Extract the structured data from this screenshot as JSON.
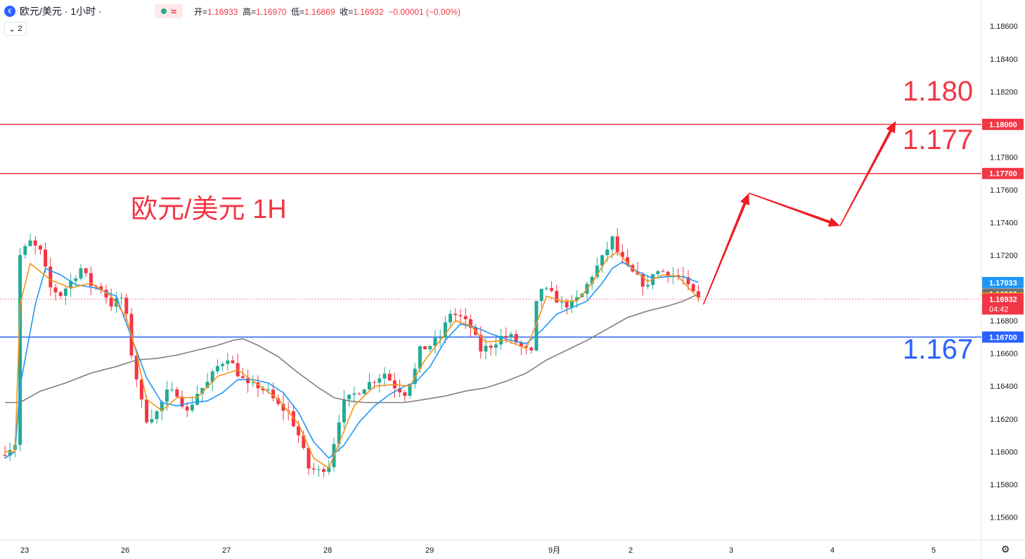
{
  "header": {
    "symbol": "欧元/美元 · 1小时 ·",
    "open_label": "开=",
    "open": "1.16933",
    "high_label": "高=",
    "high": "1.16970",
    "low_label": "低=",
    "low": "1.16869",
    "close_label": "收=",
    "close": "1.16932",
    "change": "−0.00001 (−0.00%)",
    "indicator_count": "2",
    "approx_symbol": "≈"
  },
  "annotations": {
    "title": "欧元/美元 1H",
    "level_180": "1.180",
    "level_177": "1.177",
    "level_167": "1.167"
  },
  "colors": {
    "up": "#22ab94",
    "down": "#f23645",
    "ma_fast": "#f7931a",
    "ma_mid": "#2196f3",
    "ma_slow": "#808080",
    "resistance": "#f23645",
    "support": "#2962ff"
  },
  "chart_data": {
    "type": "candlestick",
    "y_ticks": [
      "1.18600",
      "1.18400",
      "1.18200",
      "1.17800",
      "1.17600",
      "1.17400",
      "1.17200",
      "1.16800",
      "1.16600",
      "1.16400",
      "1.16200",
      "1.16000",
      "1.15800",
      "1.15600"
    ],
    "ylim": [
      1.1546,
      1.1876
    ],
    "x_ticks": [
      "23",
      "26",
      "27",
      "28",
      "29",
      "9月",
      "2",
      "3",
      "4",
      "5"
    ],
    "price_tags": [
      {
        "label": "1.18000",
        "value": 1.18,
        "color": "#f23645"
      },
      {
        "label": "1.17700",
        "value": 1.177,
        "color": "#f23645"
      },
      {
        "label": "1.17033",
        "value": 1.17033,
        "color": "#2196f3"
      },
      {
        "label": "1.16963",
        "value": 1.16963,
        "color": "#707070"
      },
      {
        "label": "1.16938",
        "value": 1.16938,
        "color": "#f7931a"
      },
      {
        "label": "1.16932",
        "value": 1.16932,
        "color": "#f23645",
        "sub": "04:42"
      },
      {
        "label": "1.16700",
        "value": 1.167,
        "color": "#2962ff"
      }
    ],
    "horizontal_levels": [
      {
        "value": 1.18,
        "color": "#f23645"
      },
      {
        "value": 1.177,
        "color": "#f23645"
      },
      {
        "value": 1.167,
        "color": "#2962ff"
      }
    ],
    "current_price": 1.16932,
    "close_path": [
      [
        0,
        1.16
      ],
      [
        2,
        1.1605
      ],
      [
        3,
        1.172
      ],
      [
        5,
        1.1728
      ],
      [
        7,
        1.1722
      ],
      [
        9,
        1.17
      ],
      [
        11,
        1.1696
      ],
      [
        13,
        1.1704
      ],
      [
        15,
        1.1712
      ],
      [
        17,
        1.1702
      ],
      [
        19,
        1.17
      ],
      [
        21,
        1.169
      ],
      [
        23,
        1.1694
      ],
      [
        24,
        1.1682
      ],
      [
        25,
        1.166
      ],
      [
        27,
        1.163
      ],
      [
        28,
        1.162
      ],
      [
        30,
        1.1624
      ],
      [
        32,
        1.1636
      ],
      [
        34,
        1.1636
      ],
      [
        36,
        1.1624
      ],
      [
        38,
        1.1636
      ],
      [
        40,
        1.1642
      ],
      [
        42,
        1.1652
      ],
      [
        44,
        1.1658
      ],
      [
        46,
        1.1648
      ],
      [
        48,
        1.164
      ],
      [
        50,
        1.164
      ],
      [
        52,
        1.1636
      ],
      [
        54,
        1.1628
      ],
      [
        56,
        1.1624
      ],
      [
        58,
        1.161
      ],
      [
        60,
        1.159
      ],
      [
        62,
        1.1588
      ],
      [
        64,
        1.1592
      ],
      [
        66,
        1.162
      ],
      [
        67,
        1.163
      ],
      [
        69,
        1.1635
      ],
      [
        71,
        1.164
      ],
      [
        73,
        1.1644
      ],
      [
        75,
        1.1648
      ],
      [
        77,
        1.164
      ],
      [
        79,
        1.1636
      ],
      [
        81,
        1.165
      ],
      [
        82,
        1.1662
      ],
      [
        84,
        1.1665
      ],
      [
        86,
        1.167
      ],
      [
        88,
        1.1685
      ],
      [
        90,
        1.1682
      ],
      [
        92,
        1.1676
      ],
      [
        94,
        1.1662
      ],
      [
        96,
        1.1665
      ],
      [
        98,
        1.167
      ],
      [
        100,
        1.167
      ],
      [
        102,
        1.1664
      ],
      [
        104,
        1.166
      ],
      [
        105,
        1.169
      ],
      [
        106,
        1.17
      ],
      [
        108,
        1.1696
      ],
      [
        110,
        1.169
      ],
      [
        112,
        1.169
      ],
      [
        114,
        1.1696
      ],
      [
        116,
        1.1708
      ],
      [
        118,
        1.1718
      ],
      [
        120,
        1.173
      ],
      [
        121,
        1.1722
      ],
      [
        123,
        1.1712
      ],
      [
        125,
        1.1706
      ],
      [
        127,
        1.17
      ],
      [
        128,
        1.171
      ],
      [
        130,
        1.171
      ],
      [
        132,
        1.1708
      ],
      [
        134,
        1.1706
      ],
      [
        135,
        1.17
      ],
      [
        137,
        1.1693
      ]
    ],
    "ma_fast_path": [
      [
        0,
        1.16
      ],
      [
        2,
        1.16
      ],
      [
        3,
        1.169
      ],
      [
        5,
        1.1715
      ],
      [
        9,
        1.1705
      ],
      [
        13,
        1.17
      ],
      [
        17,
        1.1703
      ],
      [
        21,
        1.1695
      ],
      [
        24,
        1.1682
      ],
      [
        26,
        1.166
      ],
      [
        28,
        1.1632
      ],
      [
        31,
        1.1625
      ],
      [
        34,
        1.1633
      ],
      [
        38,
        1.1633
      ],
      [
        42,
        1.1646
      ],
      [
        46,
        1.165
      ],
      [
        50,
        1.1641
      ],
      [
        54,
        1.1632
      ],
      [
        58,
        1.1617
      ],
      [
        61,
        1.1596
      ],
      [
        64,
        1.159
      ],
      [
        66,
        1.1605
      ],
      [
        69,
        1.1628
      ],
      [
        73,
        1.164
      ],
      [
        77,
        1.1641
      ],
      [
        80,
        1.164
      ],
      [
        83,
        1.1656
      ],
      [
        86,
        1.1668
      ],
      [
        89,
        1.168
      ],
      [
        92,
        1.1677
      ],
      [
        95,
        1.1667
      ],
      [
        99,
        1.1668
      ],
      [
        103,
        1.1663
      ],
      [
        105,
        1.1678
      ],
      [
        107,
        1.1695
      ],
      [
        110,
        1.1692
      ],
      [
        113,
        1.1692
      ],
      [
        116,
        1.1703
      ],
      [
        119,
        1.1718
      ],
      [
        121,
        1.1722
      ],
      [
        124,
        1.1712
      ],
      [
        127,
        1.1704
      ],
      [
        130,
        1.1708
      ],
      [
        133,
        1.1707
      ],
      [
        137,
        1.16938
      ]
    ],
    "ma_mid_path": [
      [
        0,
        1.1596
      ],
      [
        2,
        1.16
      ],
      [
        3,
        1.164
      ],
      [
        6,
        1.169
      ],
      [
        8,
        1.1712
      ],
      [
        11,
        1.1708
      ],
      [
        14,
        1.1702
      ],
      [
        18,
        1.17
      ],
      [
        22,
        1.1695
      ],
      [
        25,
        1.167
      ],
      [
        28,
        1.1645
      ],
      [
        31,
        1.163
      ],
      [
        34,
        1.1628
      ],
      [
        37,
        1.163
      ],
      [
        40,
        1.1631
      ],
      [
        43,
        1.1636
      ],
      [
        46,
        1.1644
      ],
      [
        49,
        1.1644
      ],
      [
        52,
        1.1642
      ],
      [
        55,
        1.1636
      ],
      [
        58,
        1.1624
      ],
      [
        61,
        1.1606
      ],
      [
        64,
        1.1596
      ],
      [
        67,
        1.1604
      ],
      [
        70,
        1.1618
      ],
      [
        73,
        1.1628
      ],
      [
        76,
        1.1635
      ],
      [
        79,
        1.164
      ],
      [
        81,
        1.1642
      ],
      [
        84,
        1.1652
      ],
      [
        87,
        1.1668
      ],
      [
        90,
        1.1678
      ],
      [
        93,
        1.1676
      ],
      [
        96,
        1.1672
      ],
      [
        100,
        1.1668
      ],
      [
        103,
        1.1666
      ],
      [
        106,
        1.1674
      ],
      [
        109,
        1.1684
      ],
      [
        112,
        1.1688
      ],
      [
        115,
        1.1692
      ],
      [
        118,
        1.1703
      ],
      [
        120,
        1.1712
      ],
      [
        122,
        1.1716
      ],
      [
        125,
        1.171
      ],
      [
        128,
        1.1706
      ],
      [
        131,
        1.1707
      ],
      [
        134,
        1.1707
      ],
      [
        137,
        1.17033
      ]
    ],
    "ma_slow_path": [
      [
        0,
        1.163
      ],
      [
        3,
        1.163
      ],
      [
        7,
        1.1637
      ],
      [
        12,
        1.1642
      ],
      [
        17,
        1.1648
      ],
      [
        22,
        1.1652
      ],
      [
        26,
        1.1656
      ],
      [
        30,
        1.1657
      ],
      [
        34,
        1.1659
      ],
      [
        38,
        1.1662
      ],
      [
        42,
        1.1665
      ],
      [
        45,
        1.1668
      ],
      [
        47,
        1.1669
      ],
      [
        50,
        1.1665
      ],
      [
        54,
        1.1658
      ],
      [
        58,
        1.1648
      ],
      [
        62,
        1.1639
      ],
      [
        65,
        1.1633
      ],
      [
        68,
        1.1631
      ],
      [
        71,
        1.163
      ],
      [
        75,
        1.163
      ],
      [
        79,
        1.163
      ],
      [
        83,
        1.1632
      ],
      [
        87,
        1.1634
      ],
      [
        91,
        1.1637
      ],
      [
        95,
        1.1639
      ],
      [
        99,
        1.1643
      ],
      [
        103,
        1.1648
      ],
      [
        107,
        1.1656
      ],
      [
        111,
        1.1662
      ],
      [
        115,
        1.1668
      ],
      [
        119,
        1.1675
      ],
      [
        123,
        1.1682
      ],
      [
        127,
        1.1686
      ],
      [
        131,
        1.1689
      ],
      [
        134,
        1.1692
      ],
      [
        137,
        1.16963
      ]
    ],
    "projection_path": [
      [
        1.169,
        138
      ],
      [
        1.1758,
        147
      ],
      [
        1.1738,
        165
      ],
      [
        1.1802,
        176
      ]
    ]
  },
  "settings_icon": "gear-icon"
}
